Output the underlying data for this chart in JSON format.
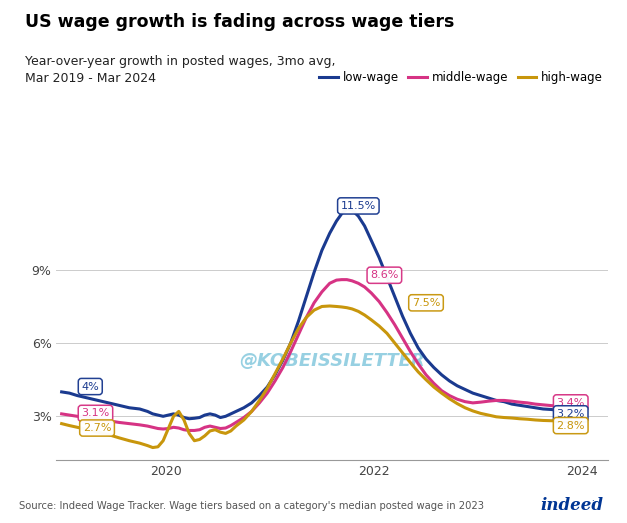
{
  "title": "US wage growth is fading across wage tiers",
  "subtitle": "Year-over-year growth in posted wages, 3mo avg,\nMar 2019 - Mar 2024",
  "source": "Source: Indeed Wage Tracker. Wage tiers based on a category's median posted wage in 2023",
  "watermark": "@KOBEISSILETTER",
  "colors": {
    "low_wage": "#1a3a8f",
    "middle_wage": "#d63384",
    "high_wage": "#c8960c"
  },
  "ylim": [
    1.2,
    13.2
  ],
  "low_wage_data": [
    [
      0.0,
      4.0
    ],
    [
      0.015,
      3.95
    ],
    [
      0.03,
      3.85
    ],
    [
      0.05,
      3.75
    ],
    [
      0.07,
      3.65
    ],
    [
      0.09,
      3.55
    ],
    [
      0.11,
      3.45
    ],
    [
      0.13,
      3.35
    ],
    [
      0.15,
      3.3
    ],
    [
      0.165,
      3.2
    ],
    [
      0.175,
      3.1
    ],
    [
      0.185,
      3.05
    ],
    [
      0.195,
      3.0
    ],
    [
      0.205,
      3.05
    ],
    [
      0.215,
      3.1
    ],
    [
      0.225,
      3.05
    ],
    [
      0.235,
      2.95
    ],
    [
      0.245,
      2.9
    ],
    [
      0.255,
      2.92
    ],
    [
      0.265,
      2.95
    ],
    [
      0.275,
      3.05
    ],
    [
      0.285,
      3.1
    ],
    [
      0.295,
      3.05
    ],
    [
      0.305,
      2.95
    ],
    [
      0.315,
      3.0
    ],
    [
      0.325,
      3.1
    ],
    [
      0.335,
      3.2
    ],
    [
      0.35,
      3.35
    ],
    [
      0.365,
      3.55
    ],
    [
      0.38,
      3.85
    ],
    [
      0.395,
      4.2
    ],
    [
      0.41,
      4.7
    ],
    [
      0.425,
      5.3
    ],
    [
      0.44,
      6.0
    ],
    [
      0.455,
      6.9
    ],
    [
      0.47,
      7.9
    ],
    [
      0.485,
      8.9
    ],
    [
      0.5,
      9.8
    ],
    [
      0.515,
      10.5
    ],
    [
      0.528,
      11.0
    ],
    [
      0.538,
      11.3
    ],
    [
      0.548,
      11.5
    ],
    [
      0.558,
      11.45
    ],
    [
      0.57,
      11.2
    ],
    [
      0.582,
      10.8
    ],
    [
      0.595,
      10.2
    ],
    [
      0.61,
      9.5
    ],
    [
      0.625,
      8.7
    ],
    [
      0.64,
      7.9
    ],
    [
      0.655,
      7.1
    ],
    [
      0.67,
      6.4
    ],
    [
      0.685,
      5.8
    ],
    [
      0.7,
      5.35
    ],
    [
      0.715,
      5.0
    ],
    [
      0.73,
      4.7
    ],
    [
      0.745,
      4.45
    ],
    [
      0.76,
      4.25
    ],
    [
      0.775,
      4.1
    ],
    [
      0.79,
      3.95
    ],
    [
      0.805,
      3.85
    ],
    [
      0.82,
      3.75
    ],
    [
      0.835,
      3.65
    ],
    [
      0.85,
      3.6
    ],
    [
      0.865,
      3.5
    ],
    [
      0.88,
      3.45
    ],
    [
      0.895,
      3.4
    ],
    [
      0.91,
      3.35
    ],
    [
      0.925,
      3.3
    ],
    [
      0.94,
      3.28
    ],
    [
      0.955,
      3.25
    ],
    [
      0.968,
      3.22
    ],
    [
      0.98,
      3.2
    ],
    [
      1.0,
      3.2
    ]
  ],
  "middle_wage_data": [
    [
      0.0,
      3.1
    ],
    [
      0.015,
      3.05
    ],
    [
      0.03,
      3.0
    ],
    [
      0.05,
      2.95
    ],
    [
      0.07,
      2.88
    ],
    [
      0.09,
      2.82
    ],
    [
      0.11,
      2.75
    ],
    [
      0.13,
      2.7
    ],
    [
      0.15,
      2.65
    ],
    [
      0.165,
      2.6
    ],
    [
      0.175,
      2.55
    ],
    [
      0.185,
      2.5
    ],
    [
      0.195,
      2.48
    ],
    [
      0.205,
      2.5
    ],
    [
      0.215,
      2.55
    ],
    [
      0.225,
      2.52
    ],
    [
      0.235,
      2.45
    ],
    [
      0.245,
      2.42
    ],
    [
      0.255,
      2.42
    ],
    [
      0.265,
      2.45
    ],
    [
      0.275,
      2.55
    ],
    [
      0.285,
      2.6
    ],
    [
      0.295,
      2.55
    ],
    [
      0.305,
      2.5
    ],
    [
      0.315,
      2.52
    ],
    [
      0.325,
      2.62
    ],
    [
      0.335,
      2.75
    ],
    [
      0.35,
      2.95
    ],
    [
      0.365,
      3.2
    ],
    [
      0.38,
      3.55
    ],
    [
      0.395,
      3.95
    ],
    [
      0.41,
      4.45
    ],
    [
      0.425,
      5.0
    ],
    [
      0.44,
      5.65
    ],
    [
      0.455,
      6.35
    ],
    [
      0.47,
      7.05
    ],
    [
      0.485,
      7.65
    ],
    [
      0.5,
      8.1
    ],
    [
      0.515,
      8.45
    ],
    [
      0.528,
      8.58
    ],
    [
      0.538,
      8.6
    ],
    [
      0.548,
      8.6
    ],
    [
      0.558,
      8.55
    ],
    [
      0.57,
      8.45
    ],
    [
      0.582,
      8.3
    ],
    [
      0.595,
      8.05
    ],
    [
      0.61,
      7.7
    ],
    [
      0.625,
      7.25
    ],
    [
      0.64,
      6.75
    ],
    [
      0.655,
      6.2
    ],
    [
      0.67,
      5.65
    ],
    [
      0.685,
      5.15
    ],
    [
      0.7,
      4.7
    ],
    [
      0.715,
      4.35
    ],
    [
      0.73,
      4.05
    ],
    [
      0.745,
      3.85
    ],
    [
      0.76,
      3.7
    ],
    [
      0.775,
      3.6
    ],
    [
      0.79,
      3.55
    ],
    [
      0.805,
      3.58
    ],
    [
      0.82,
      3.62
    ],
    [
      0.835,
      3.65
    ],
    [
      0.85,
      3.65
    ],
    [
      0.865,
      3.62
    ],
    [
      0.88,
      3.58
    ],
    [
      0.895,
      3.55
    ],
    [
      0.91,
      3.5
    ],
    [
      0.925,
      3.47
    ],
    [
      0.94,
      3.44
    ],
    [
      0.955,
      3.42
    ],
    [
      0.968,
      3.41
    ],
    [
      0.98,
      3.4
    ],
    [
      1.0,
      3.4
    ]
  ],
  "high_wage_data": [
    [
      0.0,
      2.7
    ],
    [
      0.015,
      2.62
    ],
    [
      0.03,
      2.55
    ],
    [
      0.05,
      2.45
    ],
    [
      0.07,
      2.35
    ],
    [
      0.09,
      2.25
    ],
    [
      0.11,
      2.12
    ],
    [
      0.13,
      2.0
    ],
    [
      0.15,
      1.9
    ],
    [
      0.165,
      1.8
    ],
    [
      0.175,
      1.72
    ],
    [
      0.185,
      1.75
    ],
    [
      0.195,
      2.0
    ],
    [
      0.205,
      2.5
    ],
    [
      0.215,
      3.0
    ],
    [
      0.225,
      3.2
    ],
    [
      0.235,
      2.85
    ],
    [
      0.245,
      2.3
    ],
    [
      0.255,
      2.0
    ],
    [
      0.265,
      2.05
    ],
    [
      0.275,
      2.2
    ],
    [
      0.285,
      2.4
    ],
    [
      0.295,
      2.45
    ],
    [
      0.305,
      2.35
    ],
    [
      0.315,
      2.3
    ],
    [
      0.325,
      2.4
    ],
    [
      0.335,
      2.6
    ],
    [
      0.35,
      2.85
    ],
    [
      0.365,
      3.2
    ],
    [
      0.38,
      3.65
    ],
    [
      0.395,
      4.15
    ],
    [
      0.41,
      4.75
    ],
    [
      0.425,
      5.35
    ],
    [
      0.44,
      6.0
    ],
    [
      0.455,
      6.6
    ],
    [
      0.47,
      7.05
    ],
    [
      0.485,
      7.35
    ],
    [
      0.5,
      7.5
    ],
    [
      0.515,
      7.52
    ],
    [
      0.528,
      7.5
    ],
    [
      0.538,
      7.48
    ],
    [
      0.548,
      7.45
    ],
    [
      0.558,
      7.4
    ],
    [
      0.57,
      7.3
    ],
    [
      0.582,
      7.15
    ],
    [
      0.595,
      6.95
    ],
    [
      0.61,
      6.7
    ],
    [
      0.625,
      6.4
    ],
    [
      0.64,
      6.0
    ],
    [
      0.655,
      5.6
    ],
    [
      0.67,
      5.2
    ],
    [
      0.685,
      4.82
    ],
    [
      0.7,
      4.5
    ],
    [
      0.715,
      4.2
    ],
    [
      0.73,
      3.95
    ],
    [
      0.745,
      3.72
    ],
    [
      0.76,
      3.52
    ],
    [
      0.775,
      3.35
    ],
    [
      0.79,
      3.22
    ],
    [
      0.805,
      3.12
    ],
    [
      0.82,
      3.05
    ],
    [
      0.835,
      2.98
    ],
    [
      0.85,
      2.95
    ],
    [
      0.865,
      2.93
    ],
    [
      0.88,
      2.9
    ],
    [
      0.895,
      2.88
    ],
    [
      0.91,
      2.85
    ],
    [
      0.925,
      2.83
    ],
    [
      0.94,
      2.82
    ],
    [
      0.955,
      2.81
    ],
    [
      0.968,
      2.8
    ],
    [
      0.98,
      2.8
    ],
    [
      1.0,
      2.8
    ]
  ]
}
